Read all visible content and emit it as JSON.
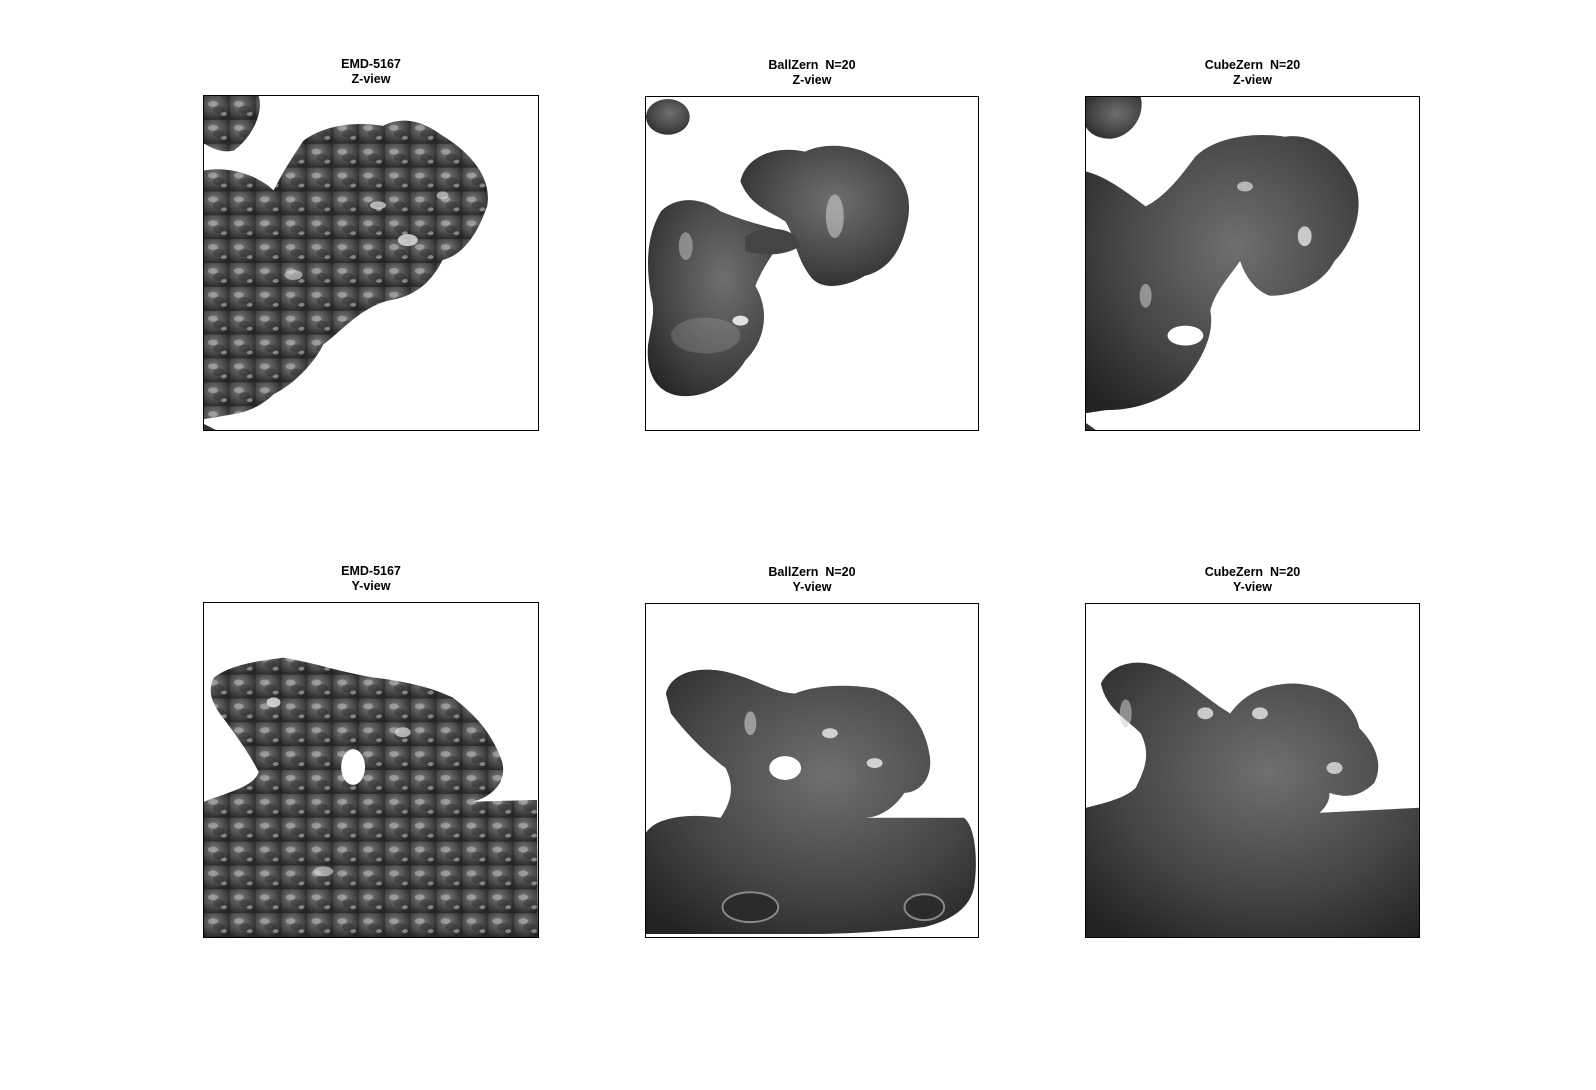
{
  "figure": {
    "panels": [
      {
        "id": "p1",
        "title": "EMD-5167",
        "subtitle": "Z-view"
      },
      {
        "id": "p2",
        "title": "BallZern  N=20",
        "subtitle": "Z-view"
      },
      {
        "id": "p3",
        "title": "CubeZern  N=20",
        "subtitle": "Z-view"
      },
      {
        "id": "p4",
        "title": "EMD-5167",
        "subtitle": "Y-view"
      },
      {
        "id": "p5",
        "title": "BallZern  N=20",
        "subtitle": "Y-view"
      },
      {
        "id": "p6",
        "title": "CubeZern  N=20",
        "subtitle": "Y-view"
      }
    ]
  },
  "colors": {
    "surface_dark": "#2f2f2f",
    "surface_mid": "#555555",
    "surface_light": "#8a8a8a",
    "highlight": "#e8e8e8",
    "frame": "#000000",
    "background": "#ffffff"
  }
}
